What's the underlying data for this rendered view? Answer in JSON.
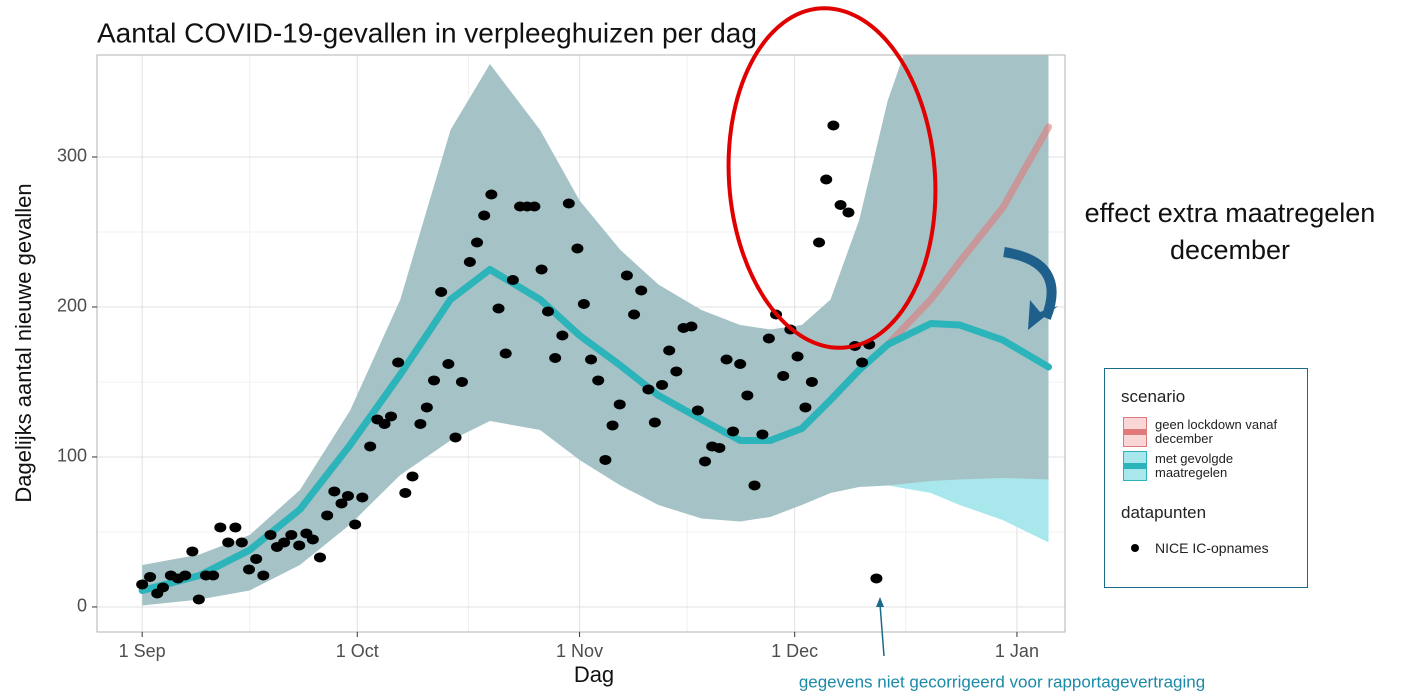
{
  "chart_data": {
    "type": "line",
    "title": "Aantal COVID-19-gevallen in verpleeghuizen per dag",
    "xlabel": "Dag",
    "ylabel": "Dagelijks aantal nieuwe gevallen",
    "xlim": [
      -6.3,
      128.7
    ],
    "xticks": [
      {
        "value": 0,
        "label": "1 Sep"
      },
      {
        "value": 30,
        "label": "1 Oct"
      },
      {
        "value": 61,
        "label": "1 Nov"
      },
      {
        "value": 91,
        "label": "1 Dec"
      },
      {
        "value": 122,
        "label": "1 Jan"
      }
    ],
    "ylim": [
      -16.7,
      368
    ],
    "yticks": [
      0,
      100,
      200,
      300
    ],
    "grid": true,
    "legend_title": "scenario",
    "series": [
      {
        "name": "geen lockdown vanaf december",
        "color": "#e07a7a",
        "fill": "#fad7d7",
        "x": [
          0,
          8,
          15,
          22,
          29,
          36,
          43,
          48.5,
          55.5,
          61,
          66.7,
          72,
          78,
          83.4,
          87.6,
          92,
          96,
          100,
          104,
          110,
          114,
          120,
          126.4
        ],
        "values": [
          11,
          21,
          38,
          65,
          108,
          155,
          205,
          225,
          205,
          181,
          161,
          141,
          125,
          111,
          111,
          119,
          138,
          158,
          175,
          205,
          230,
          266,
          320
        ],
        "lower": [
          1,
          5,
          11,
          28,
          55,
          88,
          111,
          124,
          118,
          98,
          81,
          68,
          59,
          57,
          60,
          68,
          76,
          80,
          81,
          84,
          85,
          86,
          85
        ],
        "upper": [
          28,
          35,
          48,
          78,
          131,
          205,
          318,
          362,
          318,
          271,
          238,
          215,
          198,
          188,
          185,
          188,
          205,
          258,
          338,
          420,
          470,
          520,
          560
        ]
      },
      {
        "name": "met gevolgde maatregelen",
        "color": "#2bb5bb",
        "fill": "#a8e8ec",
        "x": [
          0,
          8,
          15,
          22,
          29,
          36,
          43,
          48.5,
          55.5,
          61,
          66.7,
          72,
          78,
          83.4,
          87.6,
          92,
          96,
          100,
          104,
          110,
          114,
          120,
          126.4
        ],
        "values": [
          11,
          21,
          38,
          65,
          108,
          155,
          205,
          225,
          205,
          181,
          161,
          141,
          125,
          111,
          111,
          119,
          138,
          158,
          175,
          189,
          188,
          178,
          160
        ],
        "lower": [
          1,
          5,
          11,
          28,
          55,
          88,
          111,
          124,
          118,
          98,
          81,
          68,
          59,
          57,
          60,
          68,
          76,
          80,
          81,
          76,
          68,
          58,
          43
        ],
        "upper": [
          28,
          35,
          48,
          78,
          131,
          205,
          318,
          362,
          318,
          271,
          238,
          215,
          198,
          188,
          185,
          188,
          205,
          258,
          338,
          420,
          470,
          520,
          560
        ]
      }
    ],
    "points": {
      "legend_title": "datapunten",
      "name": "NICE IC-opnames",
      "color": "#000000",
      "x": [
        0,
        1.1,
        2.1,
        2.9,
        4,
        5,
        6,
        7,
        7.9,
        8.9,
        9.9,
        10.9,
        12,
        13,
        13.9,
        14.9,
        15.9,
        16.9,
        17.9,
        18.8,
        19.8,
        20.8,
        21.9,
        22.9,
        23.8,
        24.8,
        25.8,
        26.8,
        27.8,
        28.7,
        29.7,
        30.7,
        31.8,
        32.8,
        33.8,
        34.7,
        35.7,
        36.7,
        37.7,
        38.8,
        39.7,
        40.7,
        41.7,
        42.7,
        43.7,
        44.6,
        45.7,
        46.7,
        47.7,
        48.7,
        49.7,
        50.7,
        51.7,
        52.7,
        53.7,
        54.7,
        55.7,
        56.6,
        57.6,
        58.6,
        59.5,
        60.7,
        61.6,
        62.6,
        63.6,
        64.6,
        65.6,
        66.6,
        67.6,
        68.6,
        69.6,
        70.6,
        71.5,
        72.5,
        73.5,
        74.5,
        75.5,
        76.6,
        77.5,
        78.5,
        79.5,
        80.5,
        81.5,
        82.4,
        83.4,
        84.4,
        85.4,
        86.5,
        87.4,
        88.4,
        89.4,
        90.4,
        91.4,
        92.5,
        93.4,
        94.4,
        95.4,
        96.4,
        97.4,
        98.5,
        99.4,
        100.4,
        101.4,
        102.4
      ],
      "values": [
        15,
        20,
        9,
        13,
        21,
        19,
        21,
        37,
        5,
        21,
        21,
        53,
        43,
        53,
        43,
        25,
        32,
        21,
        48,
        40,
        43,
        48,
        41,
        49,
        45,
        33,
        61,
        77,
        69,
        74,
        55,
        73,
        107,
        125,
        122,
        127,
        163,
        76,
        87,
        122,
        133,
        151,
        210,
        162,
        113,
        150,
        230,
        243,
        261,
        275,
        199,
        169,
        218,
        267,
        267,
        267,
        225,
        197,
        166,
        181,
        269,
        239,
        202,
        165,
        151,
        98,
        121,
        135,
        221,
        195,
        211,
        145,
        123,
        148,
        171,
        157,
        186,
        187,
        131,
        97,
        107,
        106,
        165,
        117,
        162,
        141,
        81,
        115,
        179,
        195,
        154,
        185,
        167,
        133,
        150,
        243,
        285,
        321,
        268,
        263,
        174,
        163,
        175,
        19
      ]
    },
    "annotations": [
      "effect extra maatregelen",
      "december",
      "gegevens niet gecorrigeerd voor rapportagevertraging"
    ]
  }
}
